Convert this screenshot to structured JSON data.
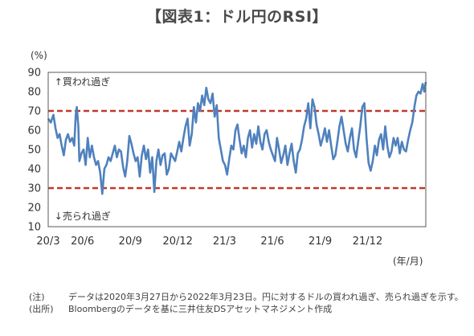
{
  "title": "【図表1：ドル円のRSI】",
  "y_unit": "(%)",
  "x_unit": "(年/月)",
  "chart_data": {
    "type": "line",
    "ylim": [
      10,
      90
    ],
    "yticks": [
      10,
      20,
      30,
      40,
      50,
      60,
      70,
      80,
      90
    ],
    "x_range": [
      "2020-03-27",
      "2022-03-23"
    ],
    "xticks": [
      {
        "label": "20/3",
        "date": "2020-03-27"
      },
      {
        "label": "20/6",
        "date": "2020-06-01"
      },
      {
        "label": "20/9",
        "date": "2020-09-01"
      },
      {
        "label": "20/12",
        "date": "2020-12-01"
      },
      {
        "label": "21/3",
        "date": "2021-03-01"
      },
      {
        "label": "21/6",
        "date": "2021-06-01"
      },
      {
        "label": "21/9",
        "date": "2021-09-01"
      },
      {
        "label": "21/12",
        "date": "2021-12-01"
      }
    ],
    "grid": false,
    "series": [
      {
        "color": "#4f81bd",
        "points": [
          [
            "2020-03-27",
            66
          ],
          [
            "2020-04-01",
            64
          ],
          [
            "2020-04-06",
            68
          ],
          [
            "2020-04-10",
            61
          ],
          [
            "2020-04-14",
            56
          ],
          [
            "2020-04-18",
            58
          ],
          [
            "2020-04-22",
            52
          ],
          [
            "2020-04-26",
            47
          ],
          [
            "2020-04-30",
            55
          ],
          [
            "2020-05-04",
            58
          ],
          [
            "2020-05-08",
            54
          ],
          [
            "2020-05-12",
            56
          ],
          [
            "2020-05-16",
            52
          ],
          [
            "2020-05-19",
            68
          ],
          [
            "2020-05-21",
            72
          ],
          [
            "2020-05-24",
            62
          ],
          [
            "2020-05-26",
            44
          ],
          [
            "2020-05-30",
            48
          ],
          [
            "2020-06-03",
            50
          ],
          [
            "2020-06-07",
            42
          ],
          [
            "2020-06-11",
            56
          ],
          [
            "2020-06-15",
            46
          ],
          [
            "2020-06-19",
            52
          ],
          [
            "2020-06-23",
            46
          ],
          [
            "2020-06-27",
            42
          ],
          [
            "2020-07-01",
            44
          ],
          [
            "2020-07-05",
            38
          ],
          [
            "2020-07-09",
            27
          ],
          [
            "2020-07-13",
            40
          ],
          [
            "2020-07-17",
            42
          ],
          [
            "2020-07-21",
            46
          ],
          [
            "2020-07-25",
            44
          ],
          [
            "2020-07-29",
            48
          ],
          [
            "2020-08-02",
            52
          ],
          [
            "2020-08-06",
            46
          ],
          [
            "2020-08-10",
            50
          ],
          [
            "2020-08-14",
            49
          ],
          [
            "2020-08-18",
            41
          ],
          [
            "2020-08-22",
            36
          ],
          [
            "2020-08-26",
            44
          ],
          [
            "2020-08-30",
            57
          ],
          [
            "2020-09-03",
            53
          ],
          [
            "2020-09-07",
            48
          ],
          [
            "2020-09-11",
            44
          ],
          [
            "2020-09-15",
            46
          ],
          [
            "2020-09-19",
            36
          ],
          [
            "2020-09-23",
            47
          ],
          [
            "2020-09-27",
            52
          ],
          [
            "2020-10-01",
            45
          ],
          [
            "2020-10-05",
            50
          ],
          [
            "2020-10-09",
            38
          ],
          [
            "2020-10-13",
            46
          ],
          [
            "2020-10-17",
            28
          ],
          [
            "2020-10-21",
            44
          ],
          [
            "2020-10-25",
            50
          ],
          [
            "2020-10-29",
            42
          ],
          [
            "2020-11-02",
            47
          ],
          [
            "2020-11-06",
            48
          ],
          [
            "2020-11-10",
            37
          ],
          [
            "2020-11-14",
            40
          ],
          [
            "2020-11-18",
            48
          ],
          [
            "2020-11-22",
            46
          ],
          [
            "2020-11-26",
            44
          ],
          [
            "2020-11-30",
            49
          ],
          [
            "2020-12-04",
            54
          ],
          [
            "2020-12-08",
            49
          ],
          [
            "2020-12-12",
            56
          ],
          [
            "2020-12-16",
            62
          ],
          [
            "2020-12-20",
            66
          ],
          [
            "2020-12-24",
            52
          ],
          [
            "2020-12-28",
            58
          ],
          [
            "2021-01-01",
            72
          ],
          [
            "2021-01-05",
            64
          ],
          [
            "2021-01-09",
            74
          ],
          [
            "2021-01-13",
            70
          ],
          [
            "2021-01-17",
            78
          ],
          [
            "2021-01-21",
            73
          ],
          [
            "2021-01-25",
            82
          ],
          [
            "2021-01-29",
            76
          ],
          [
            "2021-02-02",
            74
          ],
          [
            "2021-02-06",
            79
          ],
          [
            "2021-02-10",
            67
          ],
          [
            "2021-02-14",
            73
          ],
          [
            "2021-02-18",
            56
          ],
          [
            "2021-02-22",
            50
          ],
          [
            "2021-02-26",
            44
          ],
          [
            "2021-03-02",
            42
          ],
          [
            "2021-03-06",
            37
          ],
          [
            "2021-03-10",
            45
          ],
          [
            "2021-03-14",
            52
          ],
          [
            "2021-03-18",
            50
          ],
          [
            "2021-03-22",
            60
          ],
          [
            "2021-03-26",
            63
          ],
          [
            "2021-03-30",
            55
          ],
          [
            "2021-04-03",
            48
          ],
          [
            "2021-04-07",
            52
          ],
          [
            "2021-04-11",
            46
          ],
          [
            "2021-04-15",
            56
          ],
          [
            "2021-04-19",
            60
          ],
          [
            "2021-04-23",
            51
          ],
          [
            "2021-04-27",
            58
          ],
          [
            "2021-05-01",
            53
          ],
          [
            "2021-05-05",
            62
          ],
          [
            "2021-05-09",
            54
          ],
          [
            "2021-05-13",
            50
          ],
          [
            "2021-05-17",
            58
          ],
          [
            "2021-05-21",
            60
          ],
          [
            "2021-05-25",
            54
          ],
          [
            "2021-05-29",
            50
          ],
          [
            "2021-06-02",
            47
          ],
          [
            "2021-06-06",
            44
          ],
          [
            "2021-06-10",
            56
          ],
          [
            "2021-06-14",
            50
          ],
          [
            "2021-06-18",
            43
          ],
          [
            "2021-06-22",
            47
          ],
          [
            "2021-06-26",
            52
          ],
          [
            "2021-06-30",
            42
          ],
          [
            "2021-07-04",
            48
          ],
          [
            "2021-07-08",
            53
          ],
          [
            "2021-07-12",
            44
          ],
          [
            "2021-07-16",
            38
          ],
          [
            "2021-07-20",
            48
          ],
          [
            "2021-07-24",
            50
          ],
          [
            "2021-07-28",
            55
          ],
          [
            "2021-08-01",
            62
          ],
          [
            "2021-08-05",
            66
          ],
          [
            "2021-08-09",
            74
          ],
          [
            "2021-08-13",
            61
          ],
          [
            "2021-08-17",
            76
          ],
          [
            "2021-08-21",
            72
          ],
          [
            "2021-08-25",
            63
          ],
          [
            "2021-08-29",
            58
          ],
          [
            "2021-09-02",
            52
          ],
          [
            "2021-09-06",
            56
          ],
          [
            "2021-09-10",
            61
          ],
          [
            "2021-09-14",
            54
          ],
          [
            "2021-09-18",
            60
          ],
          [
            "2021-09-22",
            52
          ],
          [
            "2021-09-26",
            45
          ],
          [
            "2021-09-30",
            47
          ],
          [
            "2021-10-04",
            54
          ],
          [
            "2021-10-08",
            62
          ],
          [
            "2021-10-12",
            67
          ],
          [
            "2021-10-16",
            60
          ],
          [
            "2021-10-20",
            53
          ],
          [
            "2021-10-24",
            49
          ],
          [
            "2021-10-28",
            56
          ],
          [
            "2021-11-01",
            61
          ],
          [
            "2021-11-05",
            50
          ],
          [
            "2021-11-09",
            46
          ],
          [
            "2021-11-13",
            54
          ],
          [
            "2021-11-17",
            62
          ],
          [
            "2021-11-21",
            72
          ],
          [
            "2021-11-25",
            74
          ],
          [
            "2021-11-29",
            56
          ],
          [
            "2021-12-03",
            43
          ],
          [
            "2021-12-07",
            39
          ],
          [
            "2021-12-11",
            44
          ],
          [
            "2021-12-15",
            52
          ],
          [
            "2021-12-19",
            47
          ],
          [
            "2021-12-23",
            55
          ],
          [
            "2021-12-27",
            58
          ],
          [
            "2021-12-31",
            50
          ],
          [
            "2022-01-04",
            62
          ],
          [
            "2022-01-08",
            52
          ],
          [
            "2022-01-12",
            46
          ],
          [
            "2022-01-16",
            49
          ],
          [
            "2022-01-20",
            56
          ],
          [
            "2022-01-24",
            52
          ],
          [
            "2022-01-28",
            56
          ],
          [
            "2022-02-01",
            48
          ],
          [
            "2022-02-05",
            54
          ],
          [
            "2022-02-09",
            50
          ],
          [
            "2022-02-13",
            49
          ],
          [
            "2022-02-17",
            55
          ],
          [
            "2022-02-21",
            60
          ],
          [
            "2022-02-25",
            64
          ],
          [
            "2022-03-01",
            72
          ],
          [
            "2022-03-05",
            78
          ],
          [
            "2022-03-09",
            80
          ],
          [
            "2022-03-13",
            79
          ],
          [
            "2022-03-17",
            84
          ],
          [
            "2022-03-20",
            80
          ],
          [
            "2022-03-23",
            85
          ]
        ]
      }
    ],
    "reference_lines": [
      {
        "value": 70,
        "color": "#c0392b",
        "style": "dashed"
      },
      {
        "value": 30,
        "color": "#c0392b",
        "style": "dashed"
      }
    ],
    "annotations": [
      {
        "text": "↑買われ過ぎ",
        "x": "2020-04-08",
        "y": 85
      },
      {
        "text": "↓売られ過ぎ",
        "x": "2020-04-08",
        "y": 15.5
      }
    ]
  },
  "notes": [
    {
      "label": "(注)",
      "text": "データは2020年3月27日から2022年3月23日。円に対するドルの買われ過ぎ、売られ過ぎを示す。"
    },
    {
      "label": "(出所)",
      "text": "Bloombergのデータを基に三井住友DSアセットマネジメント作成"
    }
  ]
}
